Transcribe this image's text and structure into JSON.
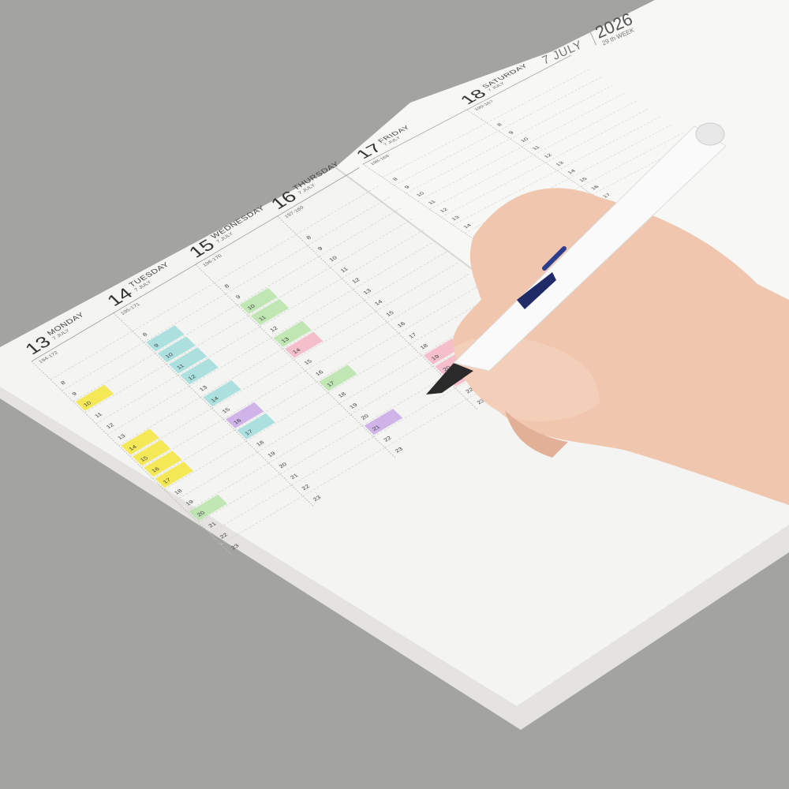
{
  "planner": {
    "month_label": "7 JULY",
    "year": "2026",
    "week_label": "29 th WEEK",
    "paper_color": "#f4f4f2",
    "background_color": "#a3a4a0",
    "left_page_days": [
      {
        "num": "13",
        "name": "MONDAY",
        "month": "7 JULY",
        "range": "194-172"
      },
      {
        "num": "14",
        "name": "TUESDAY",
        "month": "7 JULY",
        "range": "195-171"
      },
      {
        "num": "15",
        "name": "WEDNESDAY",
        "month": "7 JULY",
        "range": "196-170"
      },
      {
        "num": "16",
        "name": "THURSDAY",
        "month": "7 JULY",
        "range": "197-169"
      }
    ],
    "right_page_days": [
      {
        "num": "17",
        "name": "FRIDAY",
        "month": "7 JULY",
        "range": "198-168"
      },
      {
        "num": "18",
        "name": "SATURDAY",
        "month": "7 JULY",
        "range": "199-167"
      }
    ],
    "hours": [
      "8",
      "9",
      "10",
      "11",
      "12",
      "13",
      "14",
      "15",
      "16",
      "17",
      "18",
      "19",
      "20",
      "21",
      "22",
      "23"
    ],
    "highlight_colors": {
      "yellow": "#f3e53c",
      "teal": "#9fdcdc",
      "green": "#b5e3a8",
      "pink": "#f5b4c4",
      "purple": "#c9a8e8"
    }
  },
  "objects": {
    "pen": "white fountain pen",
    "hand": "hand writing"
  }
}
